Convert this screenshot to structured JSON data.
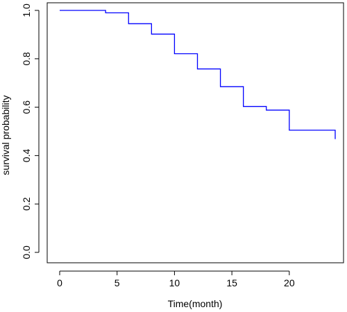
{
  "chart_data": {
    "type": "line",
    "step": true,
    "xlabel": "Time(month)",
    "ylabel": "survival probability",
    "xlim": [
      0,
      24
    ],
    "ylim": [
      0,
      1
    ],
    "xticks": [
      "0",
      "5",
      "10",
      "15",
      "20"
    ],
    "yticks": [
      "0.0",
      "0.2",
      "0.4",
      "0.6",
      "0.8",
      "1.0"
    ],
    "grid": false,
    "line_color": "#0000ff",
    "series": [
      {
        "x": [
          0,
          4,
          6,
          8,
          10,
          12,
          14,
          16,
          18,
          20,
          24,
          24
        ],
        "values": [
          1.0,
          0.99,
          0.945,
          0.902,
          0.821,
          0.758,
          0.685,
          0.603,
          0.588,
          0.505,
          0.505,
          0.468
        ]
      }
    ]
  }
}
